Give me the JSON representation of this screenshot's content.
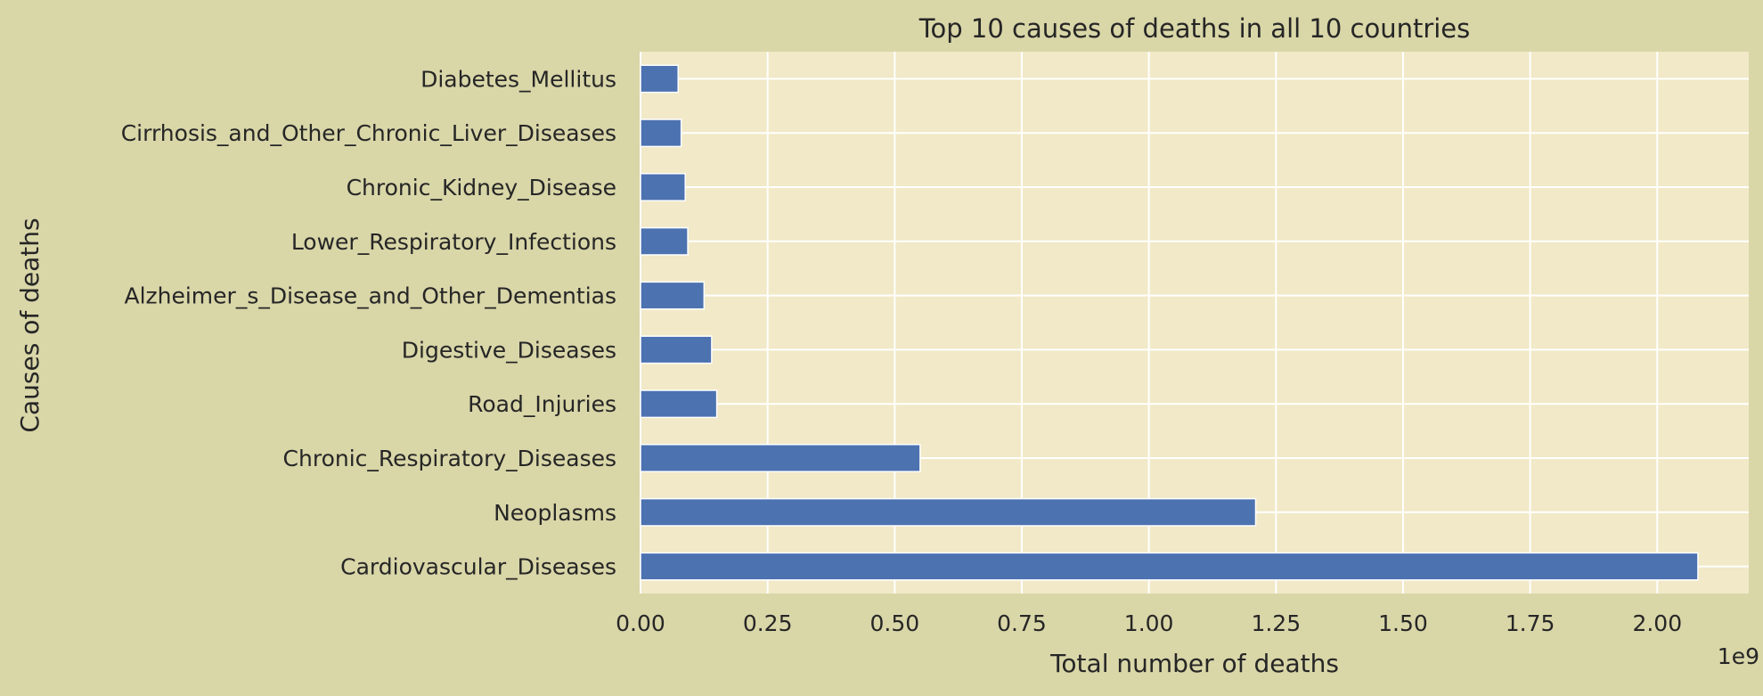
{
  "chart_data": {
    "type": "bar",
    "orientation": "horizontal",
    "title": "Top 10 causes of deaths in all 10 countries",
    "xlabel": "Total number of deaths",
    "ylabel": "Causes of deaths",
    "x_offset_text": "1e9",
    "xlim": [
      0,
      2.18
    ],
    "x_ticks": [
      0.0,
      0.25,
      0.5,
      0.75,
      1.0,
      1.25,
      1.5,
      1.75,
      2.0
    ],
    "x_tick_labels": [
      "0.00",
      "0.25",
      "0.50",
      "0.75",
      "1.00",
      "1.25",
      "1.50",
      "1.75",
      "2.00"
    ],
    "categories": [
      "Cardiovascular_Diseases",
      "Neoplasms",
      "Chronic_Respiratory_Diseases",
      "Road_Injuries",
      "Digestive_Diseases",
      "Alzheimer_s_Disease_and_Other_Dementias",
      "Lower_Respiratory_Infections",
      "Chronic_Kidney_Disease",
      "Cirrhosis_and_Other_Chronic_Liver_Diseases",
      "Diabetes_Mellitus"
    ],
    "values": [
      2.08,
      1.21,
      0.55,
      0.15,
      0.14,
      0.125,
      0.093,
      0.088,
      0.08,
      0.074
    ],
    "grid": true,
    "colors": {
      "bar": "#4c72b0",
      "plot_background": "#f1e9c7",
      "figure_background": "#d9d6a8",
      "grid": "#ffffff",
      "text": "#262626"
    }
  }
}
